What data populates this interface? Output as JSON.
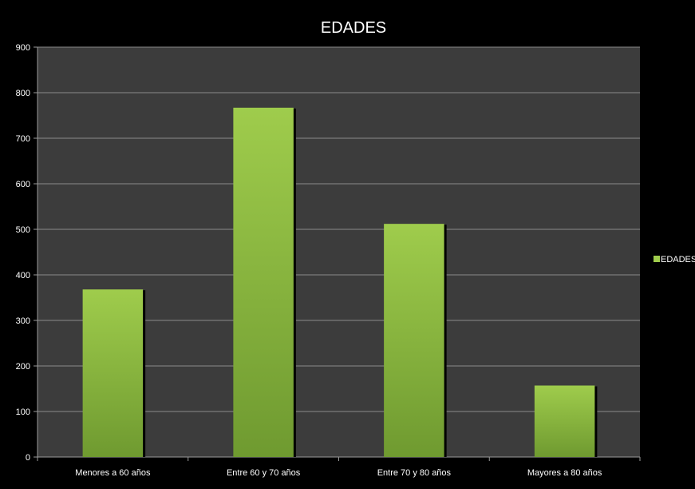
{
  "chart_data": {
    "type": "bar",
    "title": "EDADES",
    "xlabel": "",
    "ylabel": "",
    "categories": [
      "Menores a 60 años",
      "Entre 60 y 70 años",
      "Entre 70 y 80 años",
      "Mayores a 80 años"
    ],
    "series": [
      {
        "name": "EDADES",
        "values": [
          368,
          767,
          512,
          157
        ]
      }
    ],
    "ylim": [
      0,
      900
    ],
    "yticks": [
      0,
      100,
      200,
      300,
      400,
      500,
      600,
      700,
      800,
      900
    ],
    "grid": true,
    "legend_position": "right",
    "colors": {
      "background": "#000000",
      "plot_area": "#3c3c3c",
      "gridline": "#8a8a8a",
      "bar_top": "#9fcc4c",
      "bar_bottom": "#6f9a30",
      "bar_shadow": "#000000",
      "text": "#ffffff"
    }
  }
}
